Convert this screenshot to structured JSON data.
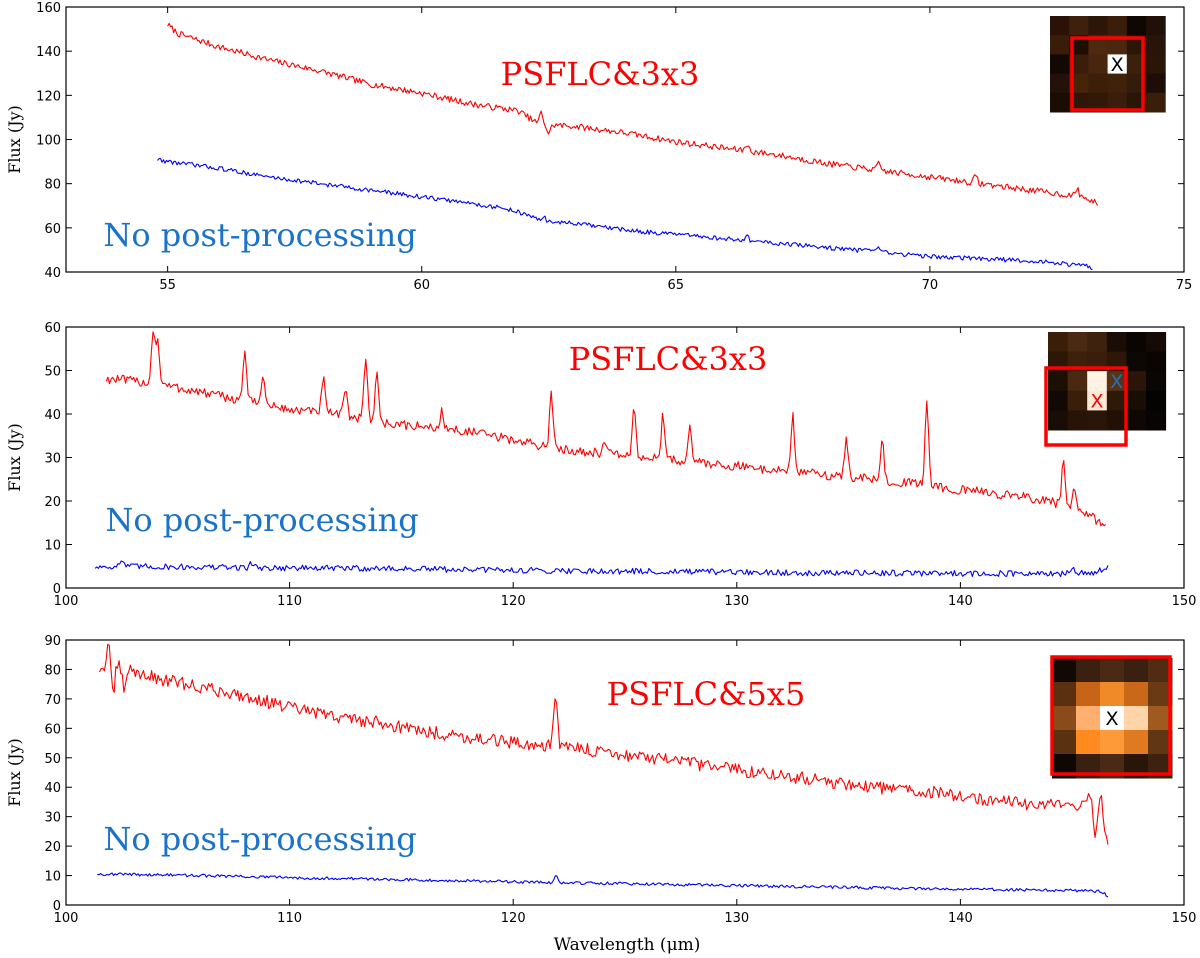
{
  "figure": {
    "xlabel": "Wavelength (μm)"
  },
  "chart_data": [
    {
      "type": "line",
      "panel": "top",
      "ylabel": "Flux (Jy)",
      "xlabel": "",
      "xlim": [
        53,
        75
      ],
      "ylim": [
        40,
        160
      ],
      "xticks": [
        55,
        60,
        65,
        70,
        75
      ],
      "yticks": [
        40,
        60,
        80,
        100,
        120,
        140,
        160
      ],
      "annotations": [
        "PSFLC&3x3",
        "No post-processing"
      ],
      "colors": {
        "processed": "#ff0000",
        "raw": "#0000ff",
        "raw_label": "#1a73c8",
        "processed_label": "#ff0000"
      },
      "series": [
        {
          "name": "PSFLC&3x3",
          "noise": 1.4,
          "spikes": [
            [
              62.35,
              5
            ],
            [
              62.5,
              -4
            ],
            [
              66.4,
              3
            ],
            [
              69.0,
              3
            ],
            [
              70.9,
              3
            ],
            [
              72.9,
              3
            ]
          ],
          "x": [
            55.0,
            55.2,
            56,
            57,
            58,
            59,
            60,
            61,
            61.9,
            62.3,
            63,
            64,
            65,
            66,
            67,
            68,
            69,
            70,
            71,
            72,
            73,
            73.3
          ],
          "y": [
            152,
            148,
            142,
            136,
            131,
            125,
            121,
            116,
            113,
            107,
            106,
            103,
            99,
            96,
            93,
            89,
            86,
            83,
            80,
            77,
            74,
            71
          ]
        },
        {
          "name": "No post-processing",
          "noise": 1.0,
          "spikes": [
            [
              62.4,
              2
            ],
            [
              66.4,
              2
            ],
            [
              69.0,
              2
            ]
          ],
          "x": [
            54.8,
            55.0,
            56,
            57,
            58,
            59,
            60,
            61,
            61.8,
            62.4,
            63,
            64,
            65,
            66,
            67,
            68,
            69,
            70,
            71,
            72,
            73,
            73.2
          ],
          "y": [
            91,
            90,
            87,
            83,
            80,
            77,
            74,
            71,
            68,
            63,
            62,
            59,
            57,
            55,
            53,
            51,
            49,
            47,
            46,
            45,
            43,
            42
          ]
        }
      ],
      "inset": {
        "grid": [
          [
            "#2a1306",
            "#3e200c",
            "#2c1607",
            "#3a1e0a",
            "#0e0703",
            "#201007"
          ],
          [
            "#3a1d09",
            "#1e0f05",
            "#4e290e",
            "#4a280f",
            "#2b1608",
            "#281408"
          ],
          [
            "#120904",
            "#3b1e0a",
            "#47260d",
            "#ffffff",
            "#3d200b",
            "#2a1507"
          ],
          [
            "#24120a",
            "#462408",
            "#3d1f09",
            "#40210a",
            "#351b09",
            "#1c0e06"
          ],
          [
            "#1a0d04",
            "#2e1708",
            "#311908",
            "#3a1d0a",
            "#2a1608",
            "#3a1e0a"
          ]
        ],
        "marker_label": "X",
        "marker_color": "#000000"
      }
    },
    {
      "type": "line",
      "panel": "middle",
      "ylabel": "Flux (Jy)",
      "xlabel": "",
      "xlim": [
        100,
        150
      ],
      "ylim": [
        0,
        60
      ],
      "xticks": [
        100,
        110,
        120,
        130,
        140,
        150
      ],
      "yticks": [
        0,
        10,
        20,
        30,
        40,
        50,
        60
      ],
      "annotations": [
        "PSFLC&3x3",
        "No post-processing"
      ],
      "colors": {
        "processed": "#ff0000",
        "raw": "#0000ff",
        "raw_label": "#1a73c8",
        "processed_label": "#ff0000"
      },
      "series": [
        {
          "name": "PSFLC&3x3",
          "noise": 1.1,
          "spikes": [
            [
              103.9,
              12
            ],
            [
              104.1,
              10
            ],
            [
              108.0,
              12
            ],
            [
              108.8,
              7
            ],
            [
              111.5,
              8
            ],
            [
              112.5,
              7
            ],
            [
              113.4,
              15
            ],
            [
              113.9,
              12
            ],
            [
              116.8,
              4
            ],
            [
              121.7,
              12
            ],
            [
              124.1,
              3
            ],
            [
              125.4,
              11
            ],
            [
              126.7,
              10
            ],
            [
              127.9,
              8
            ],
            [
              132.5,
              13
            ],
            [
              134.9,
              9
            ],
            [
              136.5,
              9
            ],
            [
              138.5,
              20
            ],
            [
              144.6,
              10
            ],
            [
              145.1,
              5
            ]
          ],
          "x": [
            101.8,
            102.2,
            104,
            106,
            108,
            110,
            112,
            114,
            116,
            118,
            120,
            122,
            124,
            126,
            128,
            130,
            132,
            134,
            136,
            138,
            140,
            142,
            144,
            145,
            146,
            146.5
          ],
          "y": [
            48,
            48,
            47,
            45,
            43,
            41,
            40,
            38,
            37,
            36,
            34,
            32,
            31,
            30,
            29,
            28,
            27,
            26,
            25,
            24,
            22.5,
            21.5,
            20,
            18,
            16,
            14
          ]
        },
        {
          "name": "No post-processing",
          "noise": 0.7,
          "spikes": [
            [
              102.5,
              1.5
            ],
            [
              108.3,
              1.2
            ],
            [
              145.0,
              1.2
            ]
          ],
          "x": [
            101.3,
            102,
            106,
            110,
            114,
            118,
            122,
            126,
            130,
            134,
            138,
            142,
            144,
            146,
            146.6
          ],
          "y": [
            4.8,
            5,
            4.8,
            4.6,
            4.5,
            4.2,
            4,
            3.8,
            3.6,
            3.5,
            3.4,
            3.3,
            3.2,
            3.5,
            5
          ]
        }
      ],
      "inset": {
        "grid": [
          [
            "#3a1e0a",
            "#4a2a12",
            "#3f220d",
            "#1a0d05",
            "#0a0503",
            "#150a04"
          ],
          [
            "#2d1707",
            "#3e200c",
            "#3a1d0a",
            "#2d1708",
            "#0e0804",
            "#0a0503"
          ],
          [
            "#1e0f05",
            "#4a2812",
            "#fff3e6",
            "#5a3214",
            "#2a1508",
            "#0a0603"
          ],
          [
            "#120904",
            "#3a1e0a",
            "#ffe9d6",
            "#2e1808",
            "#1a0d05",
            "#050302"
          ],
          [
            "#1a0d05",
            "#271307",
            "#2a1608",
            "#201006",
            "#0e0704",
            "#070403"
          ]
        ],
        "marker_label": "X",
        "marker_color": "#ff0000",
        "offset_marker_label": "X",
        "offset_marker_color": "#1a73c8"
      }
    },
    {
      "type": "line",
      "panel": "bottom",
      "ylabel": "Flux (Jy)",
      "xlabel": "Wavelength (μm)",
      "xlim": [
        100,
        150
      ],
      "ylim": [
        0,
        90
      ],
      "xticks": [
        100,
        110,
        120,
        130,
        140,
        150
      ],
      "yticks": [
        0,
        10,
        20,
        30,
        40,
        50,
        60,
        70,
        80,
        90
      ],
      "annotations": [
        "PSFLC&5x5",
        "No post-processing"
      ],
      "colors": {
        "processed": "#ff0000",
        "raw": "#0000ff",
        "raw_label": "#1a73c8",
        "processed_label": "#ff0000"
      },
      "series": [
        {
          "name": "PSFLC&5x5",
          "noise": 2.2,
          "spikes": [
            [
              101.9,
              6
            ],
            [
              102.1,
              -10
            ],
            [
              102.6,
              -7
            ],
            [
              121.9,
              18
            ],
            [
              145.8,
              6
            ],
            [
              146.0,
              -8
            ],
            [
              146.3,
              6
            ]
          ],
          "x": [
            101.5,
            102,
            104,
            106,
            108,
            110,
            112,
            114,
            116,
            118,
            120,
            122,
            124,
            126,
            128,
            130,
            132,
            134,
            136,
            138,
            140,
            142,
            144,
            145.5,
            146.3,
            146.6
          ],
          "y": [
            80,
            82,
            77,
            74,
            71,
            67,
            64,
            62,
            59,
            57,
            55,
            54,
            52,
            50,
            48,
            46,
            44,
            42,
            40,
            39,
            37,
            35,
            34,
            34,
            30,
            21
          ]
        },
        {
          "name": "No post-processing",
          "noise": 0.5,
          "spikes": [
            [
              121.9,
              2.5
            ]
          ],
          "x": [
            101.4,
            102,
            106,
            110,
            114,
            118,
            122,
            126,
            130,
            134,
            138,
            142,
            145,
            146.3,
            146.6
          ],
          "y": [
            10.5,
            10.5,
            10,
            9.3,
            8.8,
            8.2,
            7.6,
            7.1,
            6.6,
            6.1,
            5.6,
            5.2,
            4.9,
            4.6,
            3
          ]
        }
      ],
      "inset": {
        "grid": [
          [
            "#120804",
            "#3a2010",
            "#4a2a14",
            "#3a2010",
            "#502c12"
          ],
          [
            "#5a3010",
            "#c86418",
            "#f08a28",
            "#c86818",
            "#6a3a14"
          ],
          [
            "#8a4a1a",
            "#ffb070",
            "#ffffff",
            "#ffd4a8",
            "#a05a20"
          ],
          [
            "#5a3212",
            "#ff8a20",
            "#ff9a38",
            "#e07a20",
            "#603614"
          ],
          [
            "#0e0704",
            "#3a2010",
            "#4a2a14",
            "#2a1608",
            "#3e2210"
          ]
        ],
        "marker_label": "X",
        "marker_color": "#000000"
      }
    }
  ]
}
